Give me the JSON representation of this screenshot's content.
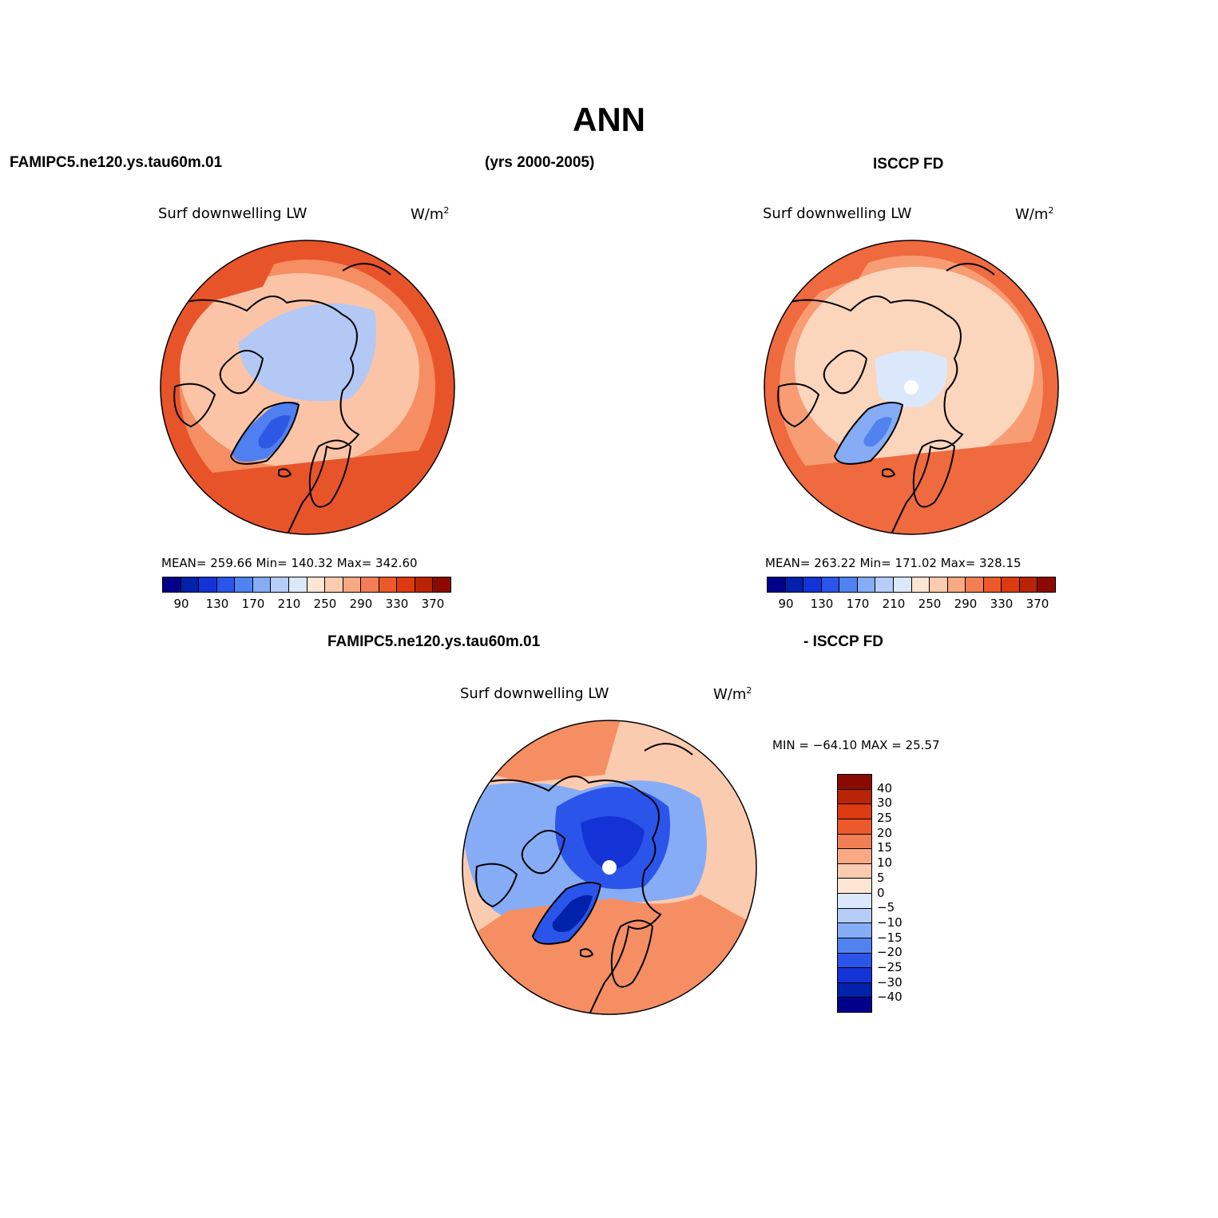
{
  "title": "ANN",
  "header": {
    "case_left": "FAMIPC5.ne120.ys.tau60m.01",
    "years": "(yrs 2000-2005)",
    "obs_right": "ISCCP FD",
    "diff_left": "FAMIPC5.ne120.ys.tau60m.01",
    "diff_right": "- ISCCP FD"
  },
  "panels": {
    "model": {
      "variable": "Surf downwelling LW",
      "units": "W/m",
      "units_sup": "2",
      "stats": "MEAN= 259.66   Min= 140.32   Max= 342.60"
    },
    "obs": {
      "variable": "Surf downwelling LW",
      "units": "W/m",
      "units_sup": "2",
      "stats": "MEAN= 263.22   Min= 171.02   Max= 328.15"
    },
    "diff": {
      "variable": "Surf downwelling LW",
      "units": "W/m",
      "units_sup": "2",
      "stats": "MIN = −64.10 MAX =  25.57"
    }
  },
  "colorbar_abs": {
    "ticks": [
      "90",
      "130",
      "170",
      "210",
      "250",
      "290",
      "330",
      "370"
    ],
    "colors": [
      "#00008b",
      "#0022aa",
      "#1433d6",
      "#2b55ea",
      "#5082f0",
      "#86acf6",
      "#b6cdf8",
      "#dbe8fb",
      "#fde5d4",
      "#fbcbb0",
      "#f8a882",
      "#f27e55",
      "#ec5a2c",
      "#dc3a10",
      "#b92306",
      "#8b0a00"
    ]
  },
  "colorbar_diff": {
    "ticks": [
      "40",
      "30",
      "25",
      "20",
      "15",
      "10",
      "5",
      "0",
      "−5",
      "−10",
      "−15",
      "−20",
      "−25",
      "−30",
      "−40"
    ],
    "colors": [
      "#8b0a00",
      "#b92306",
      "#dc3a10",
      "#ec5a2c",
      "#f27e55",
      "#f8a882",
      "#fbcbb0",
      "#fde5d4",
      "#dbe8fb",
      "#b6cdf8",
      "#86acf6",
      "#5082f0",
      "#2b55ea",
      "#1433d6",
      "#0022aa",
      "#00008b"
    ]
  },
  "map_palettes": {
    "model": {
      "outer": "#e8542a",
      "ring2": "#f58e62",
      "ring3": "#fbc4a6",
      "arctic": "#b3c8f4",
      "greenland": "#4f7ff0",
      "greenland_core": "#2d58e4"
    },
    "obs": {
      "outer": "#ef6a3e",
      "ring2": "#f89c74",
      "ring3": "#fcd5bd",
      "arctic": "#dbe8fb",
      "greenland": "#86acf6",
      "greenland_core": "#5082f0"
    },
    "diff": {
      "outer": "#fbcbb0",
      "warm": "#f58e62",
      "cool": "#86acf6",
      "arctic": "#2b55ea",
      "core": "#1433d6",
      "deep": "#0022aa"
    }
  }
}
